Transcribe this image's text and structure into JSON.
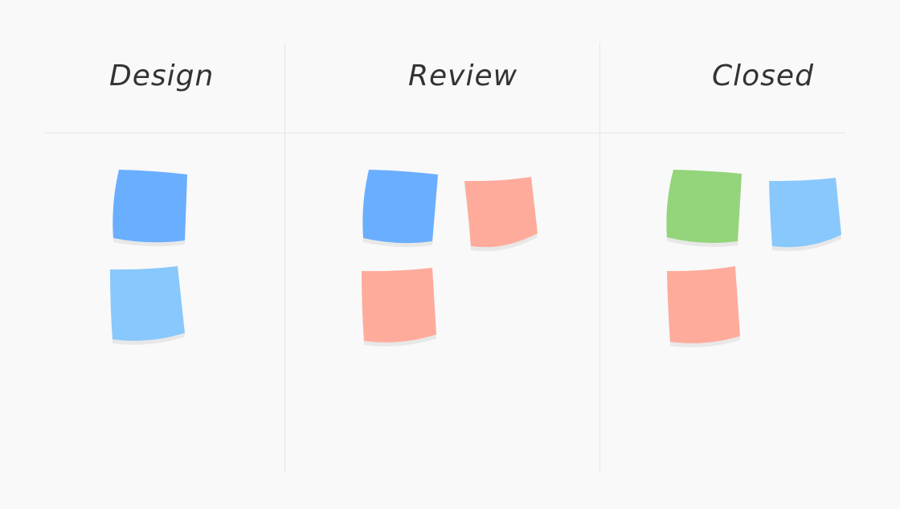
{
  "board": {
    "columns": [
      {
        "title": "Design",
        "notes": [
          "blue",
          "light-blue"
        ]
      },
      {
        "title": "Review",
        "notes": [
          "blue",
          "salmon",
          "salmon"
        ]
      },
      {
        "title": "Closed",
        "notes": [
          "green",
          "light-blue",
          "salmon"
        ]
      }
    ]
  },
  "colors": {
    "blue": "#6aaeff",
    "light-blue": "#88c8fc",
    "salmon": "#ffab9c",
    "green": "#94d47a",
    "shadow": "#e8e8e8",
    "background": "#f9f9f9"
  }
}
